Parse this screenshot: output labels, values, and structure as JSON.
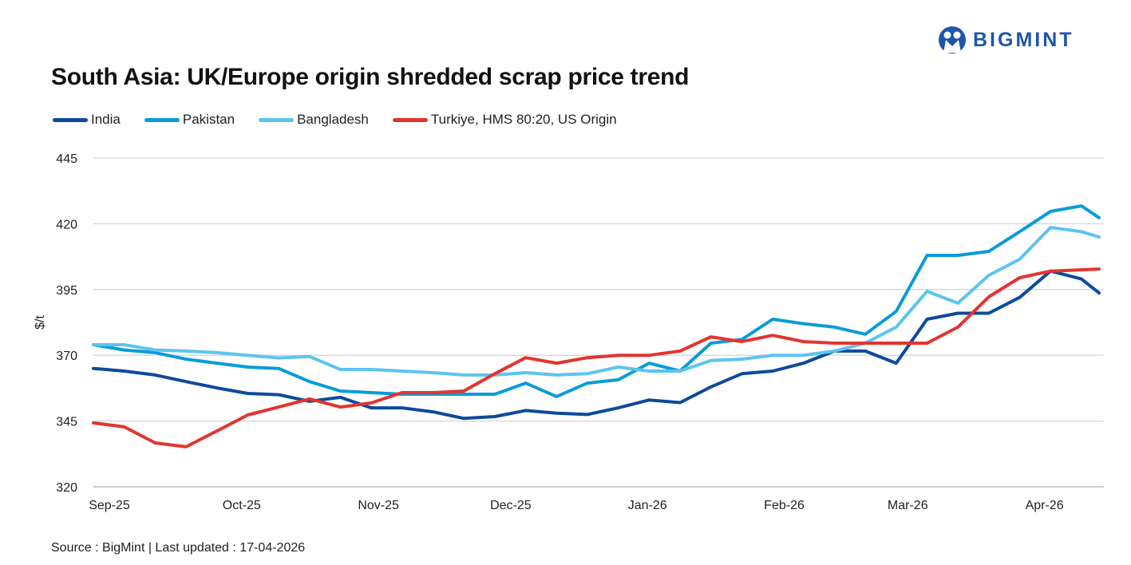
{
  "brand": {
    "name": "BIGMINT",
    "color": "#1f56a8"
  },
  "source": "Source : BigMint | Last updated : 17-04-2026",
  "chart_data": {
    "type": "line",
    "title": "South Asia: UK/Europe origin shredded scrap price trend",
    "ylabel": "$/t",
    "xlabel": "",
    "ylim": [
      320,
      445
    ],
    "yticks": [
      320,
      345,
      370,
      395,
      420,
      445
    ],
    "xticks": [
      {
        "date": "2025-09-01",
        "label": "Sep-25"
      },
      {
        "date": "2025-10-01",
        "label": "Oct-25"
      },
      {
        "date": "2025-11-01",
        "label": "Nov-25"
      },
      {
        "date": "2025-12-01",
        "label": "Dec-25"
      },
      {
        "date": "2026-01-01",
        "label": "Jan-26"
      },
      {
        "date": "2026-02-01",
        "label": "Feb-26"
      },
      {
        "date": "2026-03-01",
        "label": "Mar-26"
      },
      {
        "date": "2026-04-01",
        "label": "Apr-26"
      }
    ],
    "xlim": [
      "2025-09-01",
      "2026-04-17"
    ],
    "grid": "horizontal",
    "legend": "top-left",
    "x": [
      "2025-09-01",
      "2025-09-08",
      "2025-09-15",
      "2025-09-22",
      "2025-09-29",
      "2025-10-06",
      "2025-10-13",
      "2025-10-20",
      "2025-10-27",
      "2025-11-03",
      "2025-11-10",
      "2025-11-17",
      "2025-11-24",
      "2025-12-01",
      "2025-12-08",
      "2025-12-15",
      "2025-12-22",
      "2025-12-29",
      "2026-01-05",
      "2026-01-12",
      "2026-01-19",
      "2026-01-26",
      "2026-02-02",
      "2026-02-09",
      "2026-02-16",
      "2026-02-23",
      "2026-03-02",
      "2026-03-09",
      "2026-03-16",
      "2026-03-23",
      "2026-03-30",
      "2026-04-06",
      "2026-04-13",
      "2026-04-17"
    ],
    "series": [
      {
        "name": "India",
        "color": "#0d4a9c",
        "values": [
          365,
          364,
          362.5,
          360,
          357.6,
          355.5,
          355,
          352.5,
          354,
          350,
          350,
          348.5,
          346,
          346.7,
          349,
          348,
          347.5,
          350,
          353,
          352,
          358,
          363,
          364,
          367,
          371.6,
          371.6,
          367,
          383.7,
          386,
          386,
          392,
          402,
          399,
          393.7
        ]
      },
      {
        "name": "Pakistan",
        "color": "#0a9cd8",
        "values": [
          374,
          372,
          371,
          368.5,
          367,
          365.5,
          365,
          360,
          356.4,
          355.8,
          355.2,
          355.2,
          355.2,
          355.2,
          359.4,
          354.3,
          359.4,
          360.7,
          367,
          364,
          374.6,
          376,
          383.7,
          382,
          380.7,
          378,
          386.7,
          408,
          408,
          409.5,
          417,
          424.7,
          426.8,
          422.3
        ]
      },
      {
        "name": "Bangladesh",
        "color": "#5cc4ef",
        "values": [
          374,
          374,
          372,
          371.6,
          371,
          370,
          369,
          369.5,
          364.6,
          364.6,
          364,
          363.4,
          362.5,
          362.5,
          363.4,
          362.5,
          363,
          365.5,
          364,
          364,
          368,
          368.5,
          370,
          370,
          371.6,
          374.6,
          380.7,
          394.3,
          389.8,
          400.4,
          406.5,
          418.6,
          417,
          415
        ]
      },
      {
        "name": "Turkiye, HMS 80:20, US Origin",
        "color": "#e3342f",
        "values": [
          344.3,
          342.8,
          336.7,
          335.2,
          341.2,
          347.3,
          350.3,
          353.4,
          350.3,
          351.9,
          355.8,
          355.8,
          356.4,
          363,
          369.1,
          367,
          369.1,
          370,
          370,
          371.6,
          377,
          375.2,
          377.6,
          375.2,
          374.6,
          374.6,
          374.6,
          374.6,
          380.7,
          392.2,
          399.5,
          402,
          402.5,
          402.8
        ]
      }
    ]
  }
}
